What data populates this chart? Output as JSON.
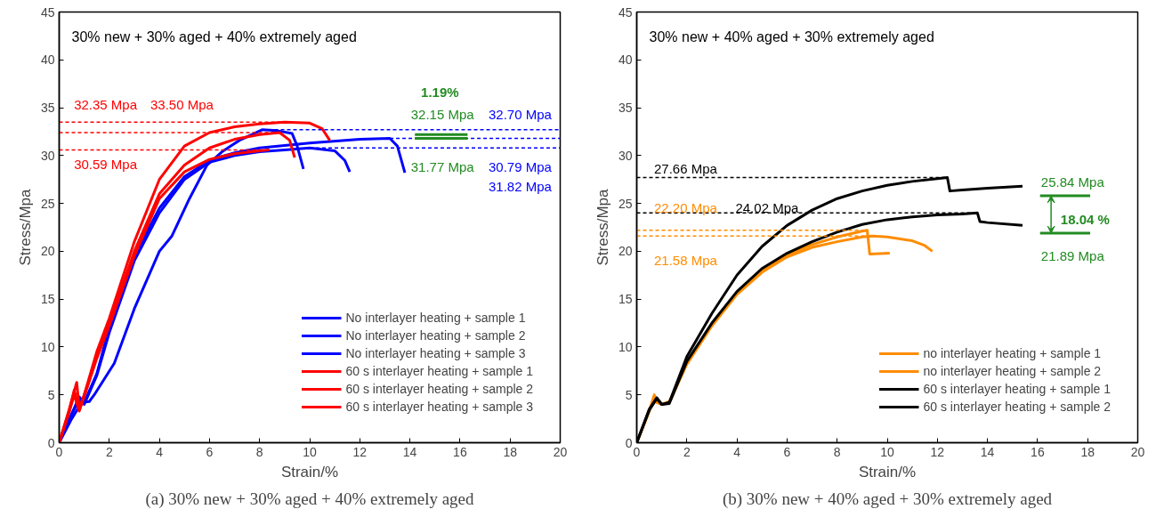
{
  "chart_data": [
    {
      "type": "line",
      "title": "(a) 30% new + 30% aged + 40% extremely aged",
      "subtitle": "30% new + 30% aged + 40% extremely aged",
      "xlabel": "Strain/%",
      "ylabel": "Stress/Mpa",
      "xlim": [
        0,
        20
      ],
      "ylim": [
        0,
        45
      ],
      "xticks": [
        0,
        2,
        4,
        6,
        8,
        10,
        12,
        14,
        16,
        18,
        20
      ],
      "yticks": [
        0,
        5,
        10,
        15,
        20,
        25,
        30,
        35,
        40,
        45
      ],
      "grid": false,
      "legend": "bottom right",
      "line_style": "solid",
      "marker": "none",
      "series": [
        {
          "name": "No interlayer heating + sample 1",
          "color": "#0000ff",
          "x": [
            0,
            0.5,
            0.9,
            1.2,
            1.4,
            2.2,
            3,
            4,
            4.5,
            5.2,
            5.9,
            6.5,
            7.2,
            8.1,
            8.7,
            9.3,
            9.5,
            9.75
          ],
          "values": [
            0,
            2.5,
            4.2,
            4.3,
            5,
            8.3,
            14,
            20,
            21.6,
            25.5,
            29,
            30.4,
            31.6,
            32.7,
            32.6,
            32.3,
            31,
            28.6
          ]
        },
        {
          "name": "No interlayer heating + sample 2",
          "color": "#0000ff",
          "x": [
            0,
            0.5,
            0.8,
            1.0,
            1.5,
            2,
            3,
            4,
            5,
            6,
            7,
            8,
            9,
            10,
            11,
            11.4,
            11.6
          ],
          "values": [
            0,
            3,
            4.5,
            4,
            7,
            11.5,
            19,
            24,
            27.5,
            29.3,
            30,
            30.4,
            30.6,
            30.8,
            30.5,
            29.5,
            28.3
          ]
        },
        {
          "name": "No interlayer heating + sample 3",
          "color": "#0000ff",
          "x": [
            0,
            0.5,
            0.8,
            1.0,
            1.5,
            2,
            3,
            4,
            5,
            6,
            7,
            8,
            10,
            12,
            13.2,
            13.5,
            13.8
          ],
          "values": [
            0,
            3,
            4.8,
            4.2,
            7.2,
            12,
            19.5,
            24.5,
            27.8,
            29.5,
            30.3,
            30.8,
            31.3,
            31.7,
            31.8,
            31,
            28.2
          ]
        },
        {
          "name": "60 s interlayer heating + sample 1",
          "color": "#ff0000",
          "x": [
            0,
            0.4,
            0.7,
            0.8,
            1.0,
            1.5,
            2,
            3,
            4,
            5,
            6,
            7,
            8,
            9,
            10,
            10.5,
            10.8
          ],
          "values": [
            0,
            3.5,
            6.3,
            3.6,
            5,
            9.5,
            13,
            21,
            27.5,
            31,
            32.4,
            33,
            33.3,
            33.5,
            33.4,
            32.8,
            31.6
          ]
        },
        {
          "name": "60 s interlayer heating + sample 2",
          "color": "#ff0000",
          "x": [
            0,
            0.4,
            0.6,
            0.8,
            1.0,
            1.5,
            2,
            3,
            4,
            5,
            6,
            7,
            8,
            8.8,
            9.2,
            9.4
          ],
          "values": [
            0,
            3.3,
            5.5,
            3.4,
            5,
            9,
            12.5,
            20,
            26,
            29,
            30.8,
            31.7,
            32.2,
            32.4,
            31.6,
            29.8
          ]
        },
        {
          "name": "60 s interlayer heating + sample 3",
          "color": "#ff0000",
          "x": [
            0,
            0.4,
            0.6,
            0.8,
            1.0,
            1.5,
            2,
            3,
            4,
            5,
            6,
            7,
            8,
            8.4
          ],
          "values": [
            0,
            3.2,
            5,
            3.3,
            4.8,
            8.8,
            12.2,
            19.5,
            25.5,
            28.3,
            29.6,
            30.2,
            30.5,
            30.6
          ]
        },
        {
          "color": "#ff0000",
          "line_style": "dashed",
          "x": [
            0,
            9
          ],
          "values": [
            33.5,
            33.5
          ]
        },
        {
          "color": "#ff0000",
          "line_style": "dashed",
          "x": [
            0,
            8.8
          ],
          "values": [
            32.4,
            32.4
          ]
        },
        {
          "color": "#ff0000",
          "line_style": "dashed",
          "x": [
            0,
            8.4
          ],
          "values": [
            30.6,
            30.6
          ]
        },
        {
          "color": "#0000ff",
          "line_style": "dashed",
          "x": [
            8.1,
            20
          ],
          "values": [
            32.7,
            32.7
          ]
        },
        {
          "color": "#0000ff",
          "line_style": "dashed",
          "x": [
            13.2,
            20
          ],
          "values": [
            31.8,
            31.8
          ]
        },
        {
          "color": "#0000ff",
          "line_style": "dashed",
          "x": [
            10,
            20
          ],
          "values": [
            30.8,
            30.8
          ]
        },
        {
          "color": "#228b22",
          "x": [
            14.2,
            16.3
          ],
          "values": [
            32.2,
            32.2
          ]
        },
        {
          "color": "#228b22",
          "x": [
            14.2,
            16.3
          ],
          "values": [
            31.8,
            31.8
          ]
        }
      ],
      "annotations": [
        "32.35 Mpa",
        "33.50 Mpa",
        "30.59 Mpa",
        "1.19%",
        "32.15 Mpa",
        "32.70 Mpa",
        "31.77 Mpa",
        "30.79 Mpa",
        "31.82 Mpa"
      ]
    },
    {
      "type": "line",
      "title": "(b) 30% new + 40% aged + 30% extremely aged",
      "subtitle": "30% new + 40% aged + 30% extremely aged",
      "xlabel": "Strain/%",
      "ylabel": "Stress/Mpa",
      "xlim": [
        0,
        20
      ],
      "ylim": [
        0,
        45
      ],
      "xticks": [
        0,
        2,
        4,
        6,
        8,
        10,
        12,
        14,
        16,
        18,
        20
      ],
      "yticks": [
        0,
        5,
        10,
        15,
        20,
        25,
        30,
        35,
        40,
        45
      ],
      "grid": false,
      "legend": "bottom right",
      "line_style": "solid",
      "marker": "none",
      "series": [
        {
          "name": "no interlayer heating + sample 1",
          "color": "#ff8c00",
          "x": [
            0,
            0.5,
            0.7,
            0.8,
            1.0,
            1.3,
            2,
            3,
            4,
            5,
            6,
            7,
            8,
            9,
            9.2,
            9.3,
            10.1
          ],
          "values": [
            0,
            3.3,
            5,
            4.2,
            4,
            4.3,
            8.3,
            12.3,
            15.6,
            18,
            19.6,
            20.7,
            21.5,
            22.1,
            22.2,
            19.7,
            19.8
          ]
        },
        {
          "name": "no interlayer heating + sample 2",
          "color": "#ff8c00",
          "x": [
            0,
            0.5,
            0.7,
            1.0,
            1.3,
            2,
            3,
            4,
            5,
            6,
            7,
            8,
            9,
            9.4,
            10,
            11,
            11.5,
            11.8
          ],
          "values": [
            0,
            3.3,
            4.6,
            4,
            4.2,
            8.2,
            12.2,
            15.5,
            17.8,
            19.4,
            20.4,
            21,
            21.5,
            21.6,
            21.5,
            21.1,
            20.6,
            20
          ]
        },
        {
          "name": "60 s interlayer heating + sample 1",
          "color": "#000000",
          "x": [
            0,
            0.5,
            0.8,
            1.0,
            1.3,
            2,
            3,
            4,
            5,
            6,
            7,
            8,
            9,
            10,
            11,
            12,
            12.4,
            12.5,
            13,
            14,
            15.4
          ],
          "values": [
            0,
            3.5,
            4.7,
            4,
            4.2,
            9,
            13.5,
            17.5,
            20.5,
            22.7,
            24.3,
            25.5,
            26.3,
            26.9,
            27.3,
            27.6,
            27.7,
            26.3,
            26.4,
            26.6,
            26.8
          ]
        },
        {
          "name": "60 s interlayer heating + sample 2",
          "color": "#000000",
          "x": [
            0,
            0.5,
            0.8,
            1.0,
            1.3,
            2,
            3,
            4,
            5,
            6,
            7,
            8,
            9,
            10,
            11,
            12,
            13,
            13.6,
            13.7,
            14,
            15.4
          ],
          "values": [
            0,
            3.4,
            4.6,
            4,
            4.1,
            8.5,
            12.5,
            15.8,
            18.2,
            19.8,
            21,
            22,
            22.8,
            23.3,
            23.6,
            23.8,
            23.9,
            24,
            23.1,
            23,
            22.7
          ]
        },
        {
          "color": "#000000",
          "line_style": "dashed",
          "x": [
            0,
            12.4
          ],
          "values": [
            27.7,
            27.7
          ]
        },
        {
          "color": "#000000",
          "line_style": "dashed",
          "x": [
            0,
            13.6
          ],
          "values": [
            24,
            24
          ]
        },
        {
          "color": "#ff8c00",
          "line_style": "dashed",
          "x": [
            0,
            9.2
          ],
          "values": [
            22.2,
            22.2
          ]
        },
        {
          "color": "#ff8c00",
          "line_style": "dashed",
          "x": [
            0,
            9.4
          ],
          "values": [
            21.6,
            21.6
          ]
        },
        {
          "color": "#228b22",
          "x": [
            16.1,
            18.1
          ],
          "values": [
            25.8,
            25.8
          ]
        },
        {
          "color": "#228b22",
          "x": [
            16.1,
            18.1
          ],
          "values": [
            21.9,
            21.9
          ]
        }
      ],
      "annotations": [
        "27.66 Mpa",
        "22.20 Mpa",
        "24.02 Mpa",
        "21.58 Mpa",
        "25.84 Mpa",
        "18.04 %",
        "21.89 Mpa"
      ]
    }
  ]
}
